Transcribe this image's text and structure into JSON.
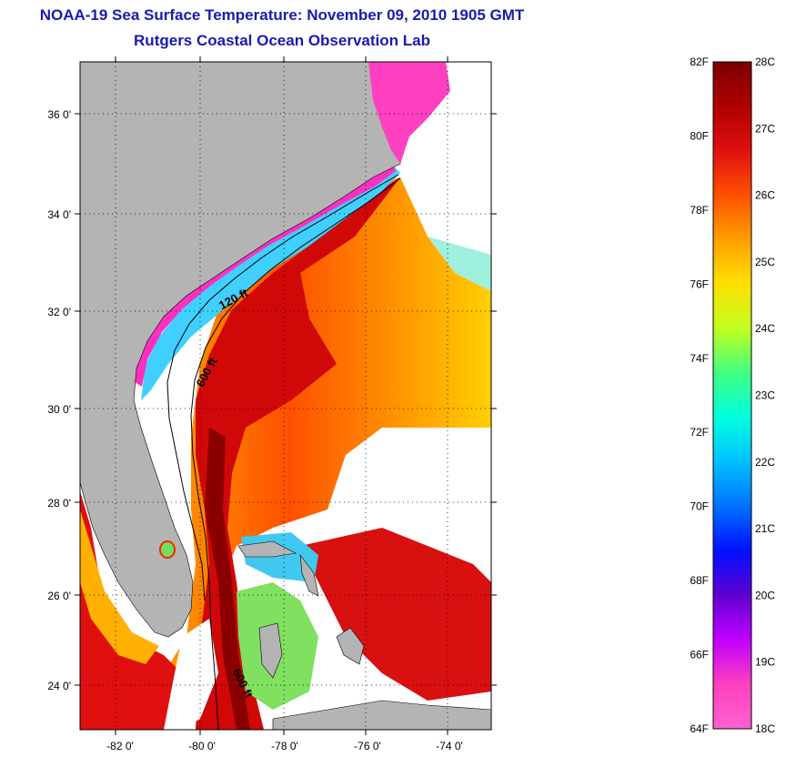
{
  "title": "NOAA-19 Sea Surface Temperature:  November 09, 2010 1905 GMT",
  "subtitle": "Rutgers Coastal Ocean Observation Lab",
  "lat_ticks": [
    "36 0'",
    "34 0'",
    "32 0'",
    "30 0'",
    "28 0'",
    "26 0'",
    "24 0'"
  ],
  "lon_ticks": [
    "-82 0'",
    "-80 0'",
    "-78 0'",
    "-76 0'",
    "-74 0'"
  ],
  "contour_labels": [
    "120 ft",
    "600 ft",
    "600 ft"
  ],
  "colorbar": {
    "fahrenheit": [
      "82F",
      "80F",
      "78F",
      "76F",
      "74F",
      "72F",
      "70F",
      "68F",
      "66F",
      "64F"
    ],
    "celsius": [
      "28C",
      "27C",
      "26C",
      "25C",
      "24C",
      "23C",
      "22C",
      "21C",
      "20C",
      "19C",
      "18C"
    ],
    "colors": [
      "#7a0000",
      "#b00000",
      "#e01010",
      "#ff5000",
      "#ffa000",
      "#ffe000",
      "#c0ff20",
      "#40ff80",
      "#00ffe0",
      "#00c0ff",
      "#0070ff",
      "#0010ff",
      "#6000d0",
      "#c000ff",
      "#ff40c0",
      "#ff60d0"
    ]
  },
  "colors": {
    "land": "#b4b4b4",
    "title": "#1a1ab0"
  }
}
